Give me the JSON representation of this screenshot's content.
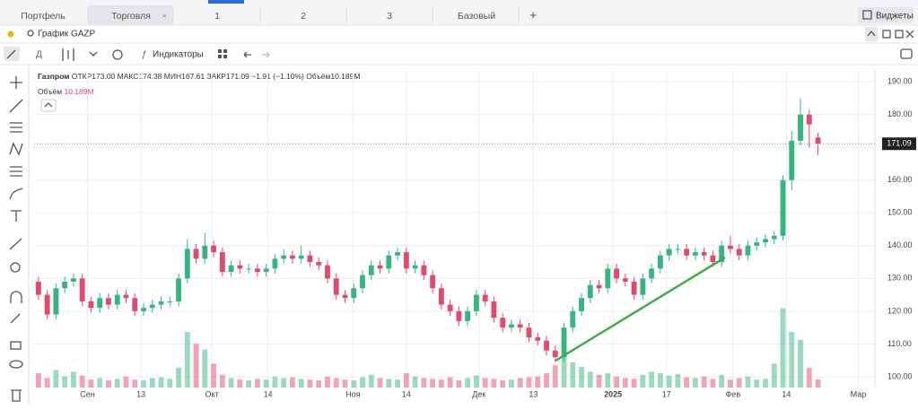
{
  "ui": {
    "tabs": [
      "Портфель",
      "Торговля",
      "1",
      "2",
      "3",
      "Базовый"
    ],
    "widgets": "Виджеты",
    "search": "График GAZP",
    "indicators": "Индикаторы",
    "info": {
      "name": "Газпром",
      "open": "ОТКР173.00",
      "high": "МАКС174.38",
      "low": "МИН167.61",
      "close": "ЗАКР171.09",
      "change": "−1.91 (−1.10%)",
      "volume": "Объём10.189M"
    },
    "volume_label": "Объём",
    "volume_value": "10.189M"
  },
  "chart_data": {
    "type": "candlestick",
    "up_color": "#35b57f",
    "down_color": "#e24a6b",
    "last_label": "171.09",
    "xlim": [
      -0.5,
      95.5
    ],
    "xticks": [
      {
        "value": 5.6,
        "label": "Сен"
      },
      {
        "value": 11.7,
        "label": "13"
      },
      {
        "value": 19.8,
        "label": "Окт"
      },
      {
        "value": 26.2,
        "label": "14"
      },
      {
        "value": 35.9,
        "label": "Ноя"
      },
      {
        "value": 42,
        "label": "14"
      },
      {
        "value": 50.3,
        "label": "Дек"
      },
      {
        "value": 56.5,
        "label": "13"
      },
      {
        "value": 65.6,
        "label": "2025"
      },
      {
        "value": 71.7,
        "label": "17"
      },
      {
        "value": 79.3,
        "label": "Фев"
      },
      {
        "value": 85.4,
        "label": "14"
      },
      {
        "value": 93.6,
        "label": "Мар"
      }
    ],
    "ylim": [
      96.7,
      193.6
    ],
    "yticks": [
      {
        "value": 100,
        "label": "100.00"
      },
      {
        "value": 110,
        "label": "110.00"
      },
      {
        "value": 120,
        "label": "120.00"
      },
      {
        "value": 130,
        "label": "130.00"
      },
      {
        "value": 140,
        "label": "140.00"
      },
      {
        "value": 150,
        "label": "150.00"
      },
      {
        "value": 160,
        "label": "160.00"
      },
      {
        "value": 170,
        "label": "170.00"
      },
      {
        "value": 180,
        "label": "180.00"
      },
      {
        "value": 190,
        "label": "190.00"
      }
    ],
    "vlim": [
      0,
      400
    ],
    "open": [
      129,
      125,
      119,
      127,
      129,
      130,
      123,
      121,
      124,
      122,
      125,
      124,
      120,
      121,
      122,
      123,
      123,
      130,
      139,
      136,
      140,
      138,
      132,
      134,
      133,
      133,
      132,
      133,
      136,
      137,
      136,
      137,
      135,
      134,
      130,
      125,
      124,
      127,
      131,
      134,
      133,
      137,
      138,
      133,
      134,
      131,
      127,
      122,
      120,
      117,
      120,
      125,
      123,
      118,
      115,
      116,
      115,
      112,
      111,
      108,
      106,
      115,
      120,
      124,
      128,
      127,
      133,
      130,
      129,
      125,
      130,
      133,
      137,
      139,
      139,
      137,
      138,
      137,
      135,
      140,
      139,
      137,
      140,
      141,
      142,
      143,
      160,
      172,
      180,
      173
    ],
    "high": [
      130.5,
      126.5,
      128.5,
      130.5,
      131.5,
      131.5,
      124.5,
      125.5,
      125.5,
      126.5,
      126.5,
      125.5,
      122.5,
      123.5,
      124.5,
      124.5,
      131.5,
      142,
      140.5,
      144,
      141.5,
      139.5,
      135.5,
      135.5,
      134.5,
      134.5,
      134.5,
      137.5,
      139,
      138.5,
      140,
      138.5,
      136.5,
      135.5,
      131.5,
      126.5,
      128.5,
      132.5,
      135.5,
      135.5,
      138.5,
      139.5,
      139.5,
      135.5,
      135.5,
      132.5,
      128.5,
      123.5,
      121.5,
      121.5,
      126.5,
      126.5,
      124.5,
      119.5,
      117.5,
      117.5,
      116.5,
      113.5,
      112.5,
      109.5,
      116.5,
      121.5,
      125.5,
      129.5,
      129.5,
      134.5,
      134.5,
      131.5,
      130.5,
      131.5,
      134.5,
      138.5,
      140.5,
      140.5,
      140.5,
      139.5,
      139.5,
      138.5,
      141.5,
      143,
      140.5,
      141.5,
      142.5,
      143.5,
      144.5,
      161.5,
      175,
      185,
      181.5,
      174.38
    ],
    "low": [
      123.5,
      117.5,
      117.5,
      125.5,
      127.5,
      121.5,
      119.5,
      119.5,
      120.5,
      120.5,
      122.5,
      118.5,
      118.5,
      119.5,
      120.5,
      121.5,
      121.5,
      128.5,
      134.5,
      134.5,
      136.5,
      130.5,
      130.5,
      131.5,
      131.5,
      130.5,
      130.5,
      131.5,
      134.5,
      134.5,
      134.5,
      133.5,
      132.5,
      128.5,
      123.5,
      122.5,
      122.5,
      125.5,
      129.5,
      131.5,
      131.5,
      135.5,
      131.5,
      131.5,
      129.5,
      125.5,
      120.5,
      118.5,
      115.5,
      115.5,
      118.5,
      121.5,
      116.5,
      113.5,
      113.5,
      113.5,
      110.5,
      109.5,
      106.5,
      104.5,
      104.5,
      113.5,
      118.5,
      122.5,
      125.5,
      125.5,
      128.5,
      127.5,
      123.5,
      123.5,
      128.5,
      131.5,
      135.5,
      137.5,
      135.5,
      135.5,
      135.5,
      133.5,
      133.5,
      137.5,
      135.5,
      135.5,
      138.5,
      139.5,
      140.5,
      141.5,
      157,
      170.5,
      170,
      167.61
    ],
    "close": [
      125,
      119,
      127,
      129,
      130,
      123,
      121,
      124,
      122,
      125,
      124,
      120,
      121,
      122,
      123,
      123,
      130,
      139,
      136,
      140,
      138,
      132,
      134,
      133,
      133,
      132,
      133,
      136,
      137,
      136,
      137,
      135,
      134,
      130,
      125,
      124,
      127,
      131,
      134,
      133,
      137,
      138,
      133,
      134,
      131,
      127,
      122,
      120,
      117,
      120,
      125,
      123,
      118,
      115,
      116,
      115,
      112,
      111,
      108,
      106,
      115,
      120,
      124,
      128,
      127,
      133,
      130,
      129,
      125,
      130,
      133,
      137,
      139,
      139,
      137,
      138,
      137,
      135,
      140,
      139,
      137,
      140,
      141,
      142,
      143,
      160,
      172,
      180,
      177,
      171.09
    ],
    "volume": [
      18,
      12,
      22,
      14,
      20,
      15,
      10,
      12,
      9,
      11,
      14,
      10,
      9,
      12,
      13,
      11,
      25,
      70,
      55,
      48,
      30,
      16,
      12,
      10,
      9,
      11,
      10,
      14,
      12,
      13,
      11,
      10,
      9,
      14,
      12,
      10,
      9,
      13,
      16,
      12,
      11,
      10,
      18,
      14,
      12,
      11,
      10,
      13,
      9,
      12,
      15,
      12,
      11,
      9,
      10,
      12,
      13,
      14,
      18,
      28,
      40,
      32,
      26,
      20,
      16,
      18,
      14,
      12,
      11,
      16,
      20,
      18,
      15,
      17,
      13,
      12,
      14,
      11,
      16,
      10,
      12,
      14,
      10,
      11,
      30,
      100,
      70,
      60,
      25,
      10.189
    ]
  }
}
